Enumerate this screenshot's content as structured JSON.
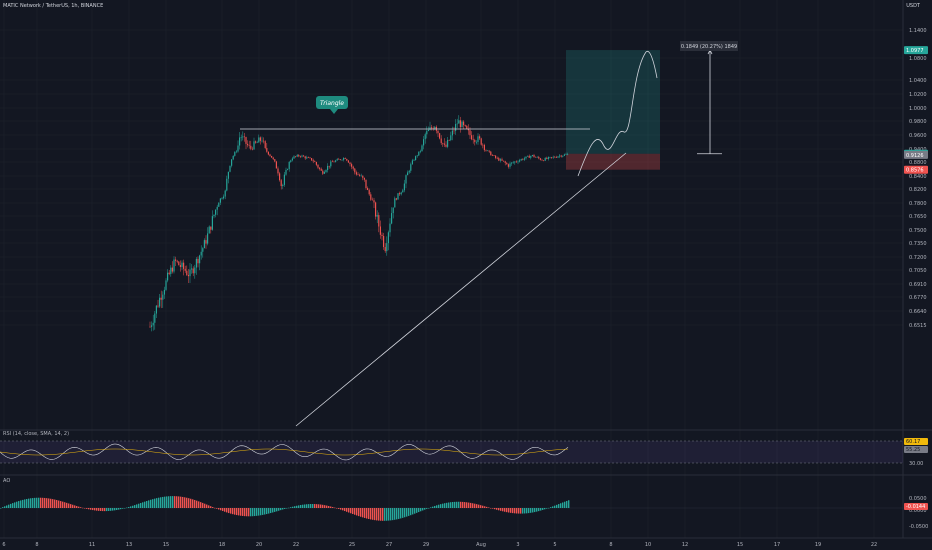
{
  "header": {
    "symbol_title": "MATIC Network / TetherUS, 1h, BINANCE",
    "currency": "USDT"
  },
  "indicators": {
    "rsi_title": "RSI (14, close, SMA, 14, 2)",
    "ao_title": "AO"
  },
  "annotations": {
    "triangle_label": "Triangle",
    "measure_label": "0.1849 (20.27%) 1849"
  },
  "colors": {
    "background": "#131722",
    "up": "#26a69a",
    "down": "#ef5350",
    "rsi_line": "#d1d4dc",
    "rsi_band": "#7e57c2"
  },
  "chart_data": {
    "type": "candlestick",
    "symbol": "MATIC/USDT",
    "y_axis_labels": [
      "1.1400",
      "1.0800",
      "1.0400",
      "1.0200",
      "1.0000",
      "0.9800",
      "0.9600",
      "0.9400",
      "0.8800",
      "0.8400",
      "0.8200",
      "0.7800",
      "0.7650",
      "0.7500",
      "0.7350",
      "0.7200",
      "0.7050",
      "0.6910",
      "0.6770",
      "0.6640",
      "0.6515"
    ],
    "ylim": [
      0.645,
      1.17
    ],
    "x_axis_labels": [
      "6",
      "8",
      "11",
      "13",
      "15",
      "18",
      "20",
      "22",
      "25",
      "27",
      "29",
      "Aug",
      "3",
      "5",
      "8",
      "10",
      "12",
      "15",
      "17",
      "19",
      "22"
    ],
    "price_badges": [
      {
        "label": "1.0977",
        "color": "#26a69a"
      },
      {
        "label": "0.9183",
        "color": "#26a69a"
      },
      {
        "label": "0.9126",
        "color": "#787b86"
      },
      {
        "label": "0.8576",
        "color": "#ef5350"
      }
    ],
    "rsi": {
      "levels": [
        "70.00",
        "30.00"
      ],
      "badges": [
        "60.17",
        "55.25"
      ]
    },
    "ao": {
      "levels": [
        "0.0000",
        "-0.0500"
      ],
      "top_label": "0.0500",
      "badge": "-0.0144"
    },
    "long_position": {
      "entry": 0.918,
      "target": 1.097,
      "stop": 0.858
    }
  }
}
